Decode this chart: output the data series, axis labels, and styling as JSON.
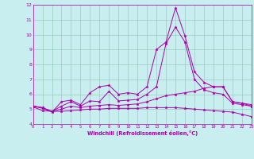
{
  "xlabel": "Windchill (Refroidissement éolien,°C)",
  "xlim": [
    0,
    23
  ],
  "ylim": [
    4,
    12
  ],
  "yticks": [
    4,
    5,
    6,
    7,
    8,
    9,
    10,
    11,
    12
  ],
  "xticks": [
    0,
    1,
    2,
    3,
    4,
    5,
    6,
    7,
    8,
    9,
    10,
    11,
    12,
    13,
    14,
    15,
    16,
    17,
    18,
    19,
    20,
    21,
    22,
    23
  ],
  "background_color": "#c8eef0",
  "line_color": "#aa00aa",
  "grid_color": "#99ccbb",
  "series": [
    {
      "x": [
        0,
        1,
        2,
        3,
        4,
        5,
        6,
        7,
        8,
        9,
        10,
        11,
        12,
        13,
        14,
        15,
        16,
        17,
        18,
        19,
        20,
        21,
        22,
        23
      ],
      "y": [
        5.2,
        5.1,
        4.8,
        5.5,
        5.6,
        5.3,
        6.1,
        6.5,
        6.6,
        6.0,
        6.1,
        6.0,
        6.5,
        9.0,
        9.5,
        11.8,
        9.9,
        7.5,
        6.8,
        6.5,
        6.5,
        5.5,
        5.4,
        5.3
      ]
    },
    {
      "x": [
        0,
        1,
        2,
        3,
        4,
        5,
        6,
        7,
        8,
        9,
        10,
        11,
        12,
        13,
        14,
        15,
        16,
        17,
        18,
        19,
        20,
        21,
        22,
        23
      ],
      "y": [
        5.2,
        5.1,
        4.85,
        5.2,
        5.5,
        5.2,
        5.55,
        5.5,
        6.2,
        5.55,
        5.6,
        5.65,
        6.0,
        6.5,
        9.4,
        10.5,
        9.5,
        7.0,
        6.3,
        6.1,
        6.0,
        5.4,
        5.3,
        5.2
      ]
    },
    {
      "x": [
        0,
        1,
        2,
        3,
        4,
        5,
        6,
        7,
        8,
        9,
        10,
        11,
        12,
        13,
        14,
        15,
        16,
        17,
        18,
        19,
        20,
        21,
        22,
        23
      ],
      "y": [
        5.2,
        5.05,
        4.85,
        5.0,
        5.2,
        5.1,
        5.2,
        5.25,
        5.3,
        5.25,
        5.3,
        5.35,
        5.5,
        5.7,
        5.9,
        6.0,
        6.1,
        6.2,
        6.4,
        6.5,
        6.5,
        5.5,
        5.4,
        5.2
      ]
    },
    {
      "x": [
        0,
        1,
        2,
        3,
        4,
        5,
        6,
        7,
        8,
        9,
        10,
        11,
        12,
        13,
        14,
        15,
        16,
        17,
        18,
        19,
        20,
        21,
        22,
        23
      ],
      "y": [
        5.15,
        4.9,
        4.85,
        4.85,
        4.9,
        4.95,
        5.0,
        5.0,
        5.05,
        5.05,
        5.05,
        5.05,
        5.1,
        5.1,
        5.1,
        5.1,
        5.05,
        5.0,
        4.95,
        4.9,
        4.85,
        4.8,
        4.65,
        4.5
      ]
    }
  ]
}
